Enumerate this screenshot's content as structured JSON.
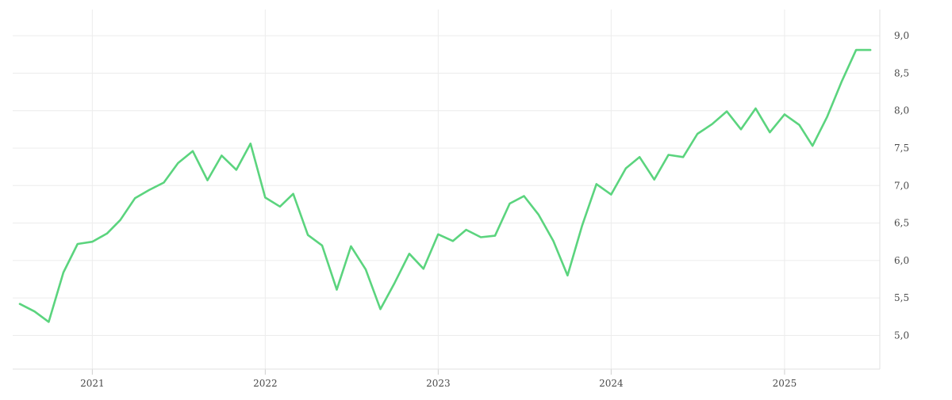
{
  "chart_data": {
    "type": "line",
    "title": "",
    "xlabel": "",
    "ylabel": "",
    "x_tick_labels": [
      "2021",
      "2022",
      "2023",
      "2024",
      "2025"
    ],
    "y_tick_labels": [
      "5,0",
      "5,5",
      "6,0",
      "6,5",
      "7,0",
      "7,5",
      "8,0",
      "8,5",
      "9,0"
    ],
    "y_ticks": [
      5.0,
      5.5,
      6.0,
      6.5,
      7.0,
      7.5,
      8.0,
      8.5,
      9.0
    ],
    "ylim": [
      4.55,
      9.35
    ],
    "xlim": [
      "2020-07-17",
      "2025-07-21"
    ],
    "grid": true,
    "line_color": "#5bd47e",
    "series": [
      {
        "x": [
          "2020-08",
          "2020-09",
          "2020-10",
          "2020-11",
          "2020-12",
          "2021-01",
          "2021-02",
          "2021-03",
          "2021-04",
          "2021-05",
          "2021-06",
          "2021-07",
          "2021-08",
          "2021-09",
          "2021-10",
          "2021-11",
          "2021-12",
          "2022-01",
          "2022-02",
          "2022-03",
          "2022-04",
          "2022-05",
          "2022-06",
          "2022-07",
          "2022-08",
          "2022-09",
          "2022-10",
          "2022-11",
          "2022-12",
          "2023-01",
          "2023-02",
          "2023-03",
          "2023-04",
          "2023-05",
          "2023-06",
          "2023-07",
          "2023-08",
          "2023-09",
          "2023-10",
          "2023-11",
          "2023-12",
          "2024-01",
          "2024-02",
          "2024-03",
          "2024-04",
          "2024-05",
          "2024-06",
          "2024-07",
          "2024-08",
          "2024-09",
          "2024-10",
          "2024-11",
          "2024-12",
          "2025-01",
          "2025-02",
          "2025-03",
          "2025-04",
          "2025-05",
          "2025-06",
          "2025-07"
        ],
        "values": [
          5.42,
          5.32,
          5.18,
          5.84,
          6.22,
          6.25,
          6.36,
          6.54,
          6.83,
          6.94,
          7.04,
          7.3,
          7.46,
          7.07,
          7.4,
          7.21,
          7.56,
          6.84,
          6.72,
          6.89,
          6.34,
          6.2,
          5.61,
          6.19,
          5.88,
          5.35,
          5.7,
          6.09,
          5.89,
          6.35,
          6.26,
          6.41,
          6.31,
          6.33,
          6.76,
          6.86,
          6.61,
          6.26,
          5.8,
          6.47,
          7.02,
          6.88,
          7.23,
          7.38,
          7.08,
          7.41,
          7.38,
          7.69,
          7.82,
          7.99,
          7.75,
          8.03,
          7.71,
          7.95,
          7.81,
          7.53,
          7.92,
          8.38,
          8.81,
          8.81
        ]
      }
    ]
  }
}
